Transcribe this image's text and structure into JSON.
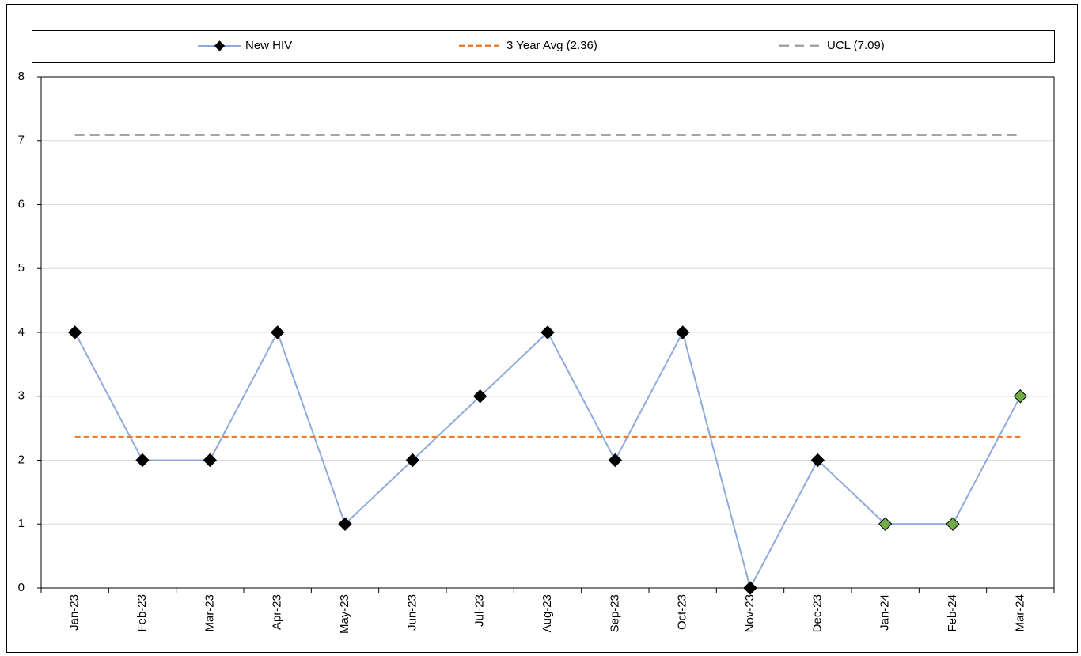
{
  "chart_data": {
    "type": "line",
    "categories": [
      "Jan-23",
      "Feb-23",
      "Mar-23",
      "Apr-23",
      "May-23",
      "Jun-23",
      "Jul-23",
      "Aug-23",
      "Sep-23",
      "Oct-23",
      "Nov-23",
      "Dec-23",
      "Jan-24",
      "Feb-24",
      "Mar-24"
    ],
    "series": [
      {
        "name": "New HIV",
        "color": "#8faadc",
        "marker": "diamond",
        "marker_colors": [
          "#000000",
          "#000000",
          "#000000",
          "#000000",
          "#000000",
          "#000000",
          "#000000",
          "#000000",
          "#000000",
          "#000000",
          "#000000",
          "#000000",
          "#70ad47",
          "#70ad47",
          "#70ad47"
        ],
        "values": [
          4,
          2,
          2,
          4,
          1,
          2,
          3,
          4,
          2,
          4,
          0,
          2,
          1,
          1,
          3
        ]
      },
      {
        "name": "3 Year Avg (2.36)",
        "color": "#ed7d31",
        "dash": "7 4",
        "values": [
          2.36,
          2.36,
          2.36,
          2.36,
          2.36,
          2.36,
          2.36,
          2.36,
          2.36,
          2.36,
          2.36,
          2.36,
          2.36,
          2.36,
          2.36
        ]
      },
      {
        "name": "UCL (7.09)",
        "color": "#a5a5a5",
        "dash": "12 7",
        "values": [
          7.09,
          7.09,
          7.09,
          7.09,
          7.09,
          7.09,
          7.09,
          7.09,
          7.09,
          7.09,
          7.09,
          7.09,
          7.09,
          7.09,
          7.09
        ]
      }
    ],
    "ylim": [
      0,
      8
    ],
    "yticks": [
      0,
      1,
      2,
      3,
      4,
      5,
      6,
      7,
      8
    ],
    "grid": true,
    "legend": "top"
  }
}
